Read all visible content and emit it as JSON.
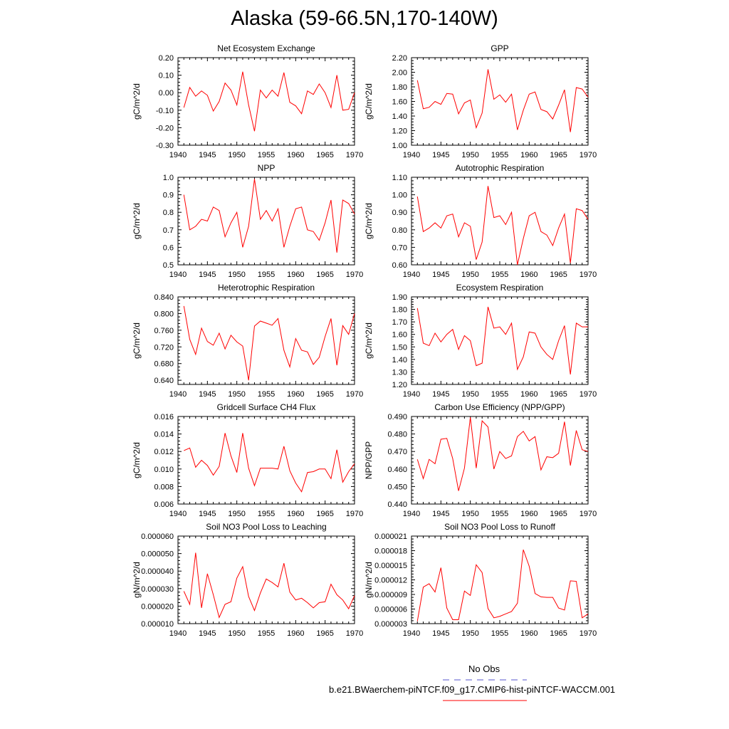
{
  "title": "Alaska (59-66.5N,170-140W)",
  "legend": {
    "obs_label": "No Obs",
    "model_label": "b.e21.BWaerchem-piNTCF.f09_g17.CMIP6-hist-piNTCF-WACCM.001",
    "obs_color": "#5555cc",
    "model_color": "#ff0000"
  },
  "chart_data": [
    {
      "type": "line",
      "title": "Net Ecosystem Exchange",
      "ylabel": "gC/m^2/d",
      "xlim": [
        1940,
        1970
      ],
      "ylim": [
        -0.3,
        0.2
      ],
      "xticks": [
        "1940",
        "1945",
        "1950",
        "1955",
        "1960",
        "1965",
        "1970"
      ],
      "yticks": [
        "0.20",
        "0.10",
        "0.00",
        "-0.10",
        "-0.20",
        "-0.30"
      ],
      "x": [
        1941,
        1942,
        1943,
        1944,
        1945,
        1946,
        1947,
        1948,
        1949,
        1950,
        1951,
        1952,
        1953,
        1954,
        1955,
        1956,
        1957,
        1958,
        1959,
        1960,
        1961,
        1962,
        1963,
        1964,
        1965,
        1966,
        1967,
        1968,
        1969,
        1970
      ],
      "series": [
        {
          "values": [
            -0.085,
            0.03,
            -0.02,
            0.01,
            -0.015,
            -0.105,
            -0.05,
            0.055,
            0.015,
            -0.07,
            0.12,
            -0.07,
            -0.22,
            0.015,
            -0.03,
            0.015,
            -0.02,
            0.115,
            -0.055,
            -0.075,
            -0.12,
            0.01,
            -0.01,
            0.05,
            0.0,
            -0.085,
            0.1,
            -0.1,
            -0.095,
            0.0
          ],
          "color": "#ff0000"
        }
      ]
    },
    {
      "type": "line",
      "title": "GPP",
      "ylabel": "gC/m^2/d",
      "xlim": [
        1940,
        1970
      ],
      "ylim": [
        1.0,
        2.2
      ],
      "xticks": [
        "1940",
        "1945",
        "1950",
        "1955",
        "1960",
        "1965",
        "1970"
      ],
      "yticks": [
        "2.20",
        "2.00",
        "1.80",
        "1.60",
        "1.40",
        "1.20",
        "1.00"
      ],
      "x": [
        1941,
        1942,
        1943,
        1944,
        1945,
        1946,
        1947,
        1948,
        1949,
        1950,
        1951,
        1952,
        1953,
        1954,
        1955,
        1956,
        1957,
        1958,
        1959,
        1960,
        1961,
        1962,
        1963,
        1964,
        1965,
        1966,
        1967,
        1968,
        1969,
        1970
      ],
      "series": [
        {
          "values": [
            1.89,
            1.5,
            1.52,
            1.6,
            1.56,
            1.71,
            1.7,
            1.43,
            1.58,
            1.62,
            1.24,
            1.44,
            2.04,
            1.63,
            1.69,
            1.59,
            1.7,
            1.21,
            1.48,
            1.7,
            1.73,
            1.49,
            1.46,
            1.36,
            1.55,
            1.76,
            1.18,
            1.79,
            1.77,
            1.66
          ],
          "color": "#ff0000"
        }
      ]
    },
    {
      "type": "line",
      "title": "NPP",
      "ylabel": "gC/m^2/d",
      "xlim": [
        1940,
        1970
      ],
      "ylim": [
        0.5,
        1.0
      ],
      "xticks": [
        "1940",
        "1945",
        "1950",
        "1955",
        "1960",
        "1965",
        "1970"
      ],
      "yticks": [
        "1.0",
        "0.9",
        "0.8",
        "0.7",
        "0.6",
        "0.5"
      ],
      "x": [
        1941,
        1942,
        1943,
        1944,
        1945,
        1946,
        1947,
        1948,
        1949,
        1950,
        1951,
        1952,
        1953,
        1954,
        1955,
        1956,
        1957,
        1958,
        1959,
        1960,
        1961,
        1962,
        1963,
        1964,
        1965,
        1966,
        1967,
        1968,
        1969,
        1970
      ],
      "series": [
        {
          "values": [
            0.9,
            0.7,
            0.72,
            0.76,
            0.75,
            0.83,
            0.81,
            0.66,
            0.74,
            0.8,
            0.6,
            0.72,
            0.99,
            0.76,
            0.81,
            0.75,
            0.82,
            0.6,
            0.72,
            0.82,
            0.83,
            0.7,
            0.69,
            0.64,
            0.74,
            0.87,
            0.57,
            0.87,
            0.85,
            0.79
          ],
          "color": "#ff0000"
        }
      ]
    },
    {
      "type": "line",
      "title": "Autotrophic Respiration",
      "ylabel": "gC/m^2/d",
      "xlim": [
        1940,
        1970
      ],
      "ylim": [
        0.6,
        1.1
      ],
      "xticks": [
        "1940",
        "1945",
        "1950",
        "1955",
        "1960",
        "1965",
        "1970"
      ],
      "yticks": [
        "1.10",
        "1.00",
        "0.90",
        "0.80",
        "0.70",
        "0.60"
      ],
      "x": [
        1941,
        1942,
        1943,
        1944,
        1945,
        1946,
        1947,
        1948,
        1949,
        1950,
        1951,
        1952,
        1953,
        1954,
        1955,
        1956,
        1957,
        1958,
        1959,
        1960,
        1961,
        1962,
        1963,
        1964,
        1965,
        1966,
        1967,
        1968,
        1969,
        1970
      ],
      "series": [
        {
          "values": [
            0.99,
            0.79,
            0.81,
            0.84,
            0.81,
            0.88,
            0.89,
            0.76,
            0.84,
            0.82,
            0.63,
            0.73,
            1.05,
            0.87,
            0.88,
            0.83,
            0.9,
            0.6,
            0.75,
            0.88,
            0.9,
            0.79,
            0.77,
            0.71,
            0.81,
            0.89,
            0.61,
            0.92,
            0.91,
            0.86
          ],
          "color": "#ff0000"
        }
      ]
    },
    {
      "type": "line",
      "title": "Heterotrophic Respiration",
      "ylabel": "gC/m^2/d",
      "xlim": [
        1940,
        1970
      ],
      "ylim": [
        0.63,
        0.84
      ],
      "xticks": [
        "1940",
        "1945",
        "1950",
        "1955",
        "1960",
        "1965",
        "1970"
      ],
      "yticks": [
        "0.840",
        "0.800",
        "0.760",
        "0.720",
        "0.680",
        "0.640"
      ],
      "x": [
        1941,
        1942,
        1943,
        1944,
        1945,
        1946,
        1947,
        1948,
        1949,
        1950,
        1951,
        1952,
        1953,
        1954,
        1955,
        1956,
        1957,
        1958,
        1959,
        1960,
        1961,
        1962,
        1963,
        1964,
        1965,
        1966,
        1967,
        1968,
        1969,
        1970
      ],
      "series": [
        {
          "values": [
            0.818,
            0.738,
            0.702,
            0.765,
            0.733,
            0.724,
            0.753,
            0.715,
            0.748,
            0.732,
            0.722,
            0.64,
            0.77,
            0.782,
            0.777,
            0.772,
            0.788,
            0.712,
            0.672,
            0.74,
            0.712,
            0.708,
            0.678,
            0.695,
            0.745,
            0.788,
            0.676,
            0.771,
            0.75,
            0.8
          ],
          "color": "#ff0000"
        }
      ]
    },
    {
      "type": "line",
      "title": "Ecosystem Respiration",
      "ylabel": "gC/m^2/d",
      "xlim": [
        1940,
        1970
      ],
      "ylim": [
        1.2,
        1.9
      ],
      "xticks": [
        "1940",
        "1945",
        "1950",
        "1955",
        "1960",
        "1965",
        "1970"
      ],
      "yticks": [
        "1.90",
        "1.80",
        "1.70",
        "1.60",
        "1.50",
        "1.40",
        "1.30",
        "1.20"
      ],
      "x": [
        1941,
        1942,
        1943,
        1944,
        1945,
        1946,
        1947,
        1948,
        1949,
        1950,
        1951,
        1952,
        1953,
        1954,
        1955,
        1956,
        1957,
        1958,
        1959,
        1960,
        1961,
        1962,
        1963,
        1964,
        1965,
        1966,
        1967,
        1968,
        1969,
        1970
      ],
      "series": [
        {
          "values": [
            1.81,
            1.53,
            1.51,
            1.61,
            1.54,
            1.6,
            1.64,
            1.48,
            1.59,
            1.55,
            1.35,
            1.37,
            1.82,
            1.65,
            1.66,
            1.6,
            1.69,
            1.32,
            1.42,
            1.62,
            1.61,
            1.5,
            1.44,
            1.4,
            1.55,
            1.67,
            1.28,
            1.69,
            1.66,
            1.66
          ],
          "color": "#ff0000"
        }
      ]
    },
    {
      "type": "line",
      "title": "Gridcell Surface CH4 Flux",
      "ylabel": "gC/m^2/d",
      "xlim": [
        1940,
        1970
      ],
      "ylim": [
        0.006,
        0.016
      ],
      "xticks": [
        "1940",
        "1945",
        "1950",
        "1955",
        "1960",
        "1965",
        "1970"
      ],
      "yticks": [
        "0.016",
        "0.014",
        "0.012",
        "0.010",
        "0.008",
        "0.006"
      ],
      "x": [
        1941,
        1942,
        1943,
        1944,
        1945,
        1946,
        1947,
        1948,
        1949,
        1950,
        1951,
        1952,
        1953,
        1954,
        1955,
        1956,
        1957,
        1958,
        1959,
        1960,
        1961,
        1962,
        1963,
        1964,
        1965,
        1966,
        1967,
        1968,
        1969,
        1970
      ],
      "series": [
        {
          "values": [
            0.0121,
            0.0124,
            0.0102,
            0.011,
            0.0104,
            0.0093,
            0.0103,
            0.0141,
            0.0115,
            0.0096,
            0.0141,
            0.0101,
            0.0081,
            0.0101,
            0.0101,
            0.0101,
            0.01,
            0.0126,
            0.0098,
            0.0084,
            0.0074,
            0.0096,
            0.0097,
            0.01,
            0.01,
            0.0089,
            0.0122,
            0.0085,
            0.0097,
            0.0106
          ],
          "color": "#ff0000"
        }
      ]
    },
    {
      "type": "line",
      "title": "Carbon Use Efficiency (NPP/GPP)",
      "ylabel": "NPP/GPP",
      "xlim": [
        1940,
        1970
      ],
      "ylim": [
        0.44,
        0.49
      ],
      "xticks": [
        "1940",
        "1945",
        "1950",
        "1955",
        "1960",
        "1965",
        "1970"
      ],
      "yticks": [
        "0.490",
        "0.480",
        "0.470",
        "0.460",
        "0.450",
        "0.440"
      ],
      "x": [
        1941,
        1942,
        1943,
        1944,
        1945,
        1946,
        1947,
        1948,
        1949,
        1950,
        1951,
        1952,
        1953,
        1954,
        1955,
        1956,
        1957,
        1958,
        1959,
        1960,
        1961,
        1962,
        1963,
        1964,
        1965,
        1966,
        1967,
        1968,
        1969,
        1970
      ],
      "series": [
        {
          "values": [
            0.4655,
            0.4545,
            0.4655,
            0.463,
            0.477,
            0.4775,
            0.466,
            0.4475,
            0.4605,
            0.4895,
            0.4605,
            0.4875,
            0.484,
            0.46,
            0.47,
            0.466,
            0.4675,
            0.4785,
            0.4815,
            0.476,
            0.4785,
            0.4595,
            0.467,
            0.4665,
            0.469,
            0.487,
            0.462,
            0.482,
            0.471,
            0.47
          ],
          "color": "#ff0000"
        }
      ]
    },
    {
      "type": "line",
      "title": "Soil NO3 Pool Loss to Leaching",
      "ylabel": "gN/m^2/d",
      "xlim": [
        1940,
        1970
      ],
      "ylim": [
        1e-05,
        6e-05
      ],
      "xticks": [
        "1940",
        "1945",
        "1950",
        "1955",
        "1960",
        "1965",
        "1970"
      ],
      "yticks": [
        "0.000060",
        "0.000050",
        "0.000040",
        "0.000030",
        "0.000020",
        "0.000010"
      ],
      "x": [
        1941,
        1942,
        1943,
        1944,
        1945,
        1946,
        1947,
        1948,
        1949,
        1950,
        1951,
        1952,
        1953,
        1954,
        1955,
        1956,
        1957,
        1958,
        1959,
        1960,
        1961,
        1962,
        1963,
        1964,
        1965,
        1966,
        1967,
        1968,
        1969,
        1970
      ],
      "series": [
        {
          "values": [
            2.85e-05,
            2.1e-05,
            5.05e-05,
            1.9e-05,
            3.85e-05,
            2.65e-05,
            1.35e-05,
            2.1e-05,
            2.25e-05,
            3.6e-05,
            4.25e-05,
            2.55e-05,
            1.75e-05,
            2.75e-05,
            3.55e-05,
            3.35e-05,
            3.1e-05,
            4.45e-05,
            2.8e-05,
            2.35e-05,
            2.45e-05,
            2.2e-05,
            1.9e-05,
            2.2e-05,
            2.25e-05,
            3.25e-05,
            2.65e-05,
            2.35e-05,
            1.85e-05,
            2.6e-05
          ],
          "color": "#ff0000"
        }
      ]
    },
    {
      "type": "line",
      "title": "Soil NO3 Pool Loss to Runoff",
      "ylabel": "gN/m^2/d",
      "xlim": [
        1940,
        1970
      ],
      "ylim": [
        3e-06,
        2.1e-05
      ],
      "xticks": [
        "1940",
        "1945",
        "1950",
        "1955",
        "1960",
        "1965",
        "1970"
      ],
      "yticks": [
        "0.000021",
        "0.000018",
        "0.000015",
        "0.000012",
        "0.000009",
        "0.000006",
        "0.000003"
      ],
      "x": [
        1941,
        1942,
        1943,
        1944,
        1945,
        1946,
        1947,
        1948,
        1949,
        1950,
        1951,
        1952,
        1953,
        1954,
        1955,
        1956,
        1957,
        1958,
        1959,
        1960,
        1961,
        1962,
        1963,
        1964,
        1965,
        1966,
        1967,
        1968,
        1969,
        1970
      ],
      "series": [
        {
          "values": [
            3.5e-06,
            1.05e-05,
            1.12e-05,
            9.5e-06,
            1.45e-05,
            6.2e-06,
            3.8e-06,
            3.8e-06,
            9.7e-06,
            8.8e-06,
            1.51e-05,
            1.35e-05,
            6.1e-06,
            4.2e-06,
            4.5e-06,
            5e-06,
            5.5e-06,
            7.2e-06,
            1.82e-05,
            1.48e-05,
            9.2e-06,
            8.5e-06,
            8.4e-06,
            8.4e-06,
            6.2e-06,
            5.8e-06,
            1.18e-05,
            1.17e-05,
            4.2e-06,
            5e-06
          ],
          "color": "#ff0000"
        }
      ]
    }
  ]
}
